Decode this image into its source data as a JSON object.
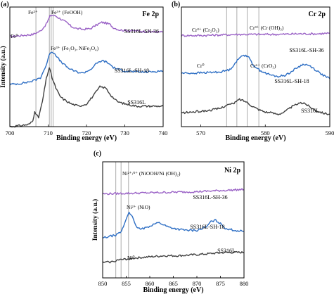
{
  "chart_data": [
    {
      "type": "line",
      "panel": "(a)",
      "title": "Fe 2p",
      "xlabel": "Binding energy (eV)",
      "ylabel": "Intensity (a.u.)",
      "xlim": [
        700,
        740
      ],
      "xticks": [
        700,
        710,
        720,
        730,
        740
      ],
      "yticks": false,
      "reference_lines": [
        706.8,
        710.3,
        710.8,
        711.3
      ],
      "annotations": [
        {
          "text": "Fe²⁺",
          "x": 708.6
        },
        {
          "text": "Fe³⁺ (FeOOH)",
          "x": 711.3
        },
        {
          "text": "Fe⁰",
          "x": 705.4
        },
        {
          "text": "Fe³⁺ (Fe₂O₃, NiFe₂O₄)",
          "x": 711.4
        }
      ],
      "series": [
        {
          "name": "SS316L-SH-36",
          "color": "#9a62c6",
          "x": [
            700,
            703,
            706,
            708,
            709.5,
            710.5,
            711,
            712,
            713,
            714,
            715,
            716,
            717.5,
            719,
            721,
            722.5,
            724,
            725,
            726,
            727,
            728.5,
            730,
            733,
            736,
            740
          ],
          "y": [
            0.79,
            0.8,
            0.81,
            0.84,
            0.9,
            0.97,
            0.98,
            0.97,
            0.95,
            0.93,
            0.91,
            0.88,
            0.86,
            0.855,
            0.86,
            0.89,
            0.915,
            0.91,
            0.9,
            0.87,
            0.85,
            0.845,
            0.84,
            0.835,
            0.83
          ]
        },
        {
          "name": "SS316L-SH-18",
          "color": "#2d6ec4",
          "x": [
            700,
            703,
            706,
            708,
            709.5,
            710.5,
            711,
            712,
            713,
            714,
            715,
            716,
            717.5,
            719,
            721,
            722.5,
            724,
            725,
            726,
            727,
            728.5,
            730,
            733,
            736,
            740
          ],
          "y": [
            0.37,
            0.38,
            0.4,
            0.43,
            0.54,
            0.65,
            0.66,
            0.63,
            0.58,
            0.55,
            0.52,
            0.5,
            0.48,
            0.47,
            0.5,
            0.55,
            0.58,
            0.57,
            0.55,
            0.52,
            0.5,
            0.49,
            0.48,
            0.48,
            0.49
          ]
        },
        {
          "name": "SS316L",
          "color": "#404040",
          "x": [
            700,
            703,
            705,
            706,
            706.5,
            707,
            707.5,
            708.5,
            709.5,
            710.3,
            711,
            712,
            713,
            714,
            716,
            718,
            720,
            722,
            723.5,
            725,
            726.5,
            728,
            730,
            733,
            736,
            740
          ],
          "y": [
            0.0,
            0.01,
            0.02,
            0.05,
            0.14,
            0.1,
            0.08,
            0.22,
            0.42,
            0.52,
            0.43,
            0.34,
            0.27,
            0.24,
            0.2,
            0.18,
            0.2,
            0.28,
            0.35,
            0.34,
            0.27,
            0.22,
            0.2,
            0.18,
            0.18,
            0.18
          ]
        }
      ]
    },
    {
      "type": "line",
      "panel": "(b)",
      "title": "Cr 2p",
      "xlabel": "Binding energy (eV)",
      "ylabel": "",
      "xlim": [
        567,
        590
      ],
      "xticks": [
        570,
        580,
        590
      ],
      "yticks": false,
      "reference_lines": [
        574.0,
        575.6,
        577.2,
        579.0
      ],
      "annotations": [
        {
          "text": "Cr³⁺ (Cr₂O₃)",
          "x": 576.0
        },
        {
          "text": "Cr³⁺ (Cr (OH)₃)",
          "x": 577.8
        },
        {
          "text": "Cr⁰",
          "x": 573.4
        },
        {
          "text": "Cr⁶⁺ (CrO₃)",
          "x": 579.3
        }
      ],
      "series": [
        {
          "name": "SS316L-SH-36",
          "color": "#9a62c6",
          "x": [
            567,
            570,
            573,
            576,
            579,
            582,
            585,
            588,
            590
          ],
          "y": [
            0.8,
            0.8,
            0.805,
            0.81,
            0.81,
            0.81,
            0.815,
            0.815,
            0.82
          ]
        },
        {
          "name": "SS316L-SH-18",
          "color": "#2d6ec4",
          "x": [
            567,
            569,
            571,
            573,
            574.5,
            575.5,
            576.5,
            577.3,
            578,
            579,
            580,
            581,
            582,
            583,
            584,
            585,
            586,
            587,
            588,
            589,
            590
          ],
          "y": [
            0.47,
            0.47,
            0.475,
            0.48,
            0.5,
            0.57,
            0.63,
            0.62,
            0.55,
            0.5,
            0.47,
            0.45,
            0.44,
            0.45,
            0.48,
            0.52,
            0.55,
            0.53,
            0.49,
            0.45,
            0.42
          ]
        },
        {
          "name": "SS316L",
          "color": "#404040",
          "x": [
            567,
            569,
            571,
            573,
            574,
            575,
            576,
            577,
            578,
            579,
            580,
            581,
            582,
            583,
            584,
            585,
            586,
            587,
            588,
            589,
            590
          ],
          "y": [
            0.12,
            0.13,
            0.14,
            0.16,
            0.19,
            0.2,
            0.24,
            0.22,
            0.18,
            0.15,
            0.13,
            0.12,
            0.11,
            0.13,
            0.17,
            0.2,
            0.21,
            0.17,
            0.14,
            0.12,
            0.11
          ]
        }
      ]
    },
    {
      "type": "line",
      "panel": "(c)",
      "title": "Ni 2p",
      "xlabel": "Binding energy (eV)",
      "ylabel": "Intensity (a.u.)",
      "xlim": [
        850,
        880
      ],
      "xticks": [
        850,
        855,
        860,
        865,
        870,
        875,
        880
      ],
      "yticks": false,
      "reference_lines": [
        852.8,
        853.9,
        855.5
      ],
      "annotations": [
        {
          "text": "Ni²⁺/³⁺ (NiOOH/Ni (OH)₂)",
          "x": 856.0
        },
        {
          "text": "Ni²⁺ (NiO)",
          "x": 854.1
        },
        {
          "text": "Ni⁰",
          "x": 854.0
        }
      ],
      "series": [
        {
          "name": "SS316L-SH-36",
          "color": "#9a62c6",
          "x": [
            850,
            855,
            860,
            865,
            870,
            875,
            880
          ],
          "y": [
            0.76,
            0.765,
            0.77,
            0.775,
            0.78,
            0.79,
            0.8
          ]
        },
        {
          "name": "SS316L-SH-18",
          "color": "#2d6ec4",
          "x": [
            850,
            851,
            852,
            853,
            854,
            854.8,
            855.6,
            856.3,
            857,
            858,
            859,
            860,
            861,
            862,
            863,
            864,
            866,
            868,
            870,
            872,
            873,
            874,
            875,
            876,
            878,
            880
          ],
          "y": [
            0.36,
            0.37,
            0.38,
            0.39,
            0.42,
            0.51,
            0.6,
            0.55,
            0.47,
            0.44,
            0.45,
            0.47,
            0.49,
            0.5,
            0.48,
            0.46,
            0.44,
            0.43,
            0.43,
            0.46,
            0.51,
            0.52,
            0.49,
            0.45,
            0.43,
            0.42
          ]
        },
        {
          "name": "SS316L",
          "color": "#404040",
          "x": [
            850,
            852,
            853,
            855,
            857,
            860,
            863,
            866,
            870,
            873,
            876,
            880
          ],
          "y": [
            0.14,
            0.145,
            0.16,
            0.17,
            0.18,
            0.19,
            0.2,
            0.2,
            0.21,
            0.22,
            0.23,
            0.23
          ]
        }
      ]
    }
  ]
}
